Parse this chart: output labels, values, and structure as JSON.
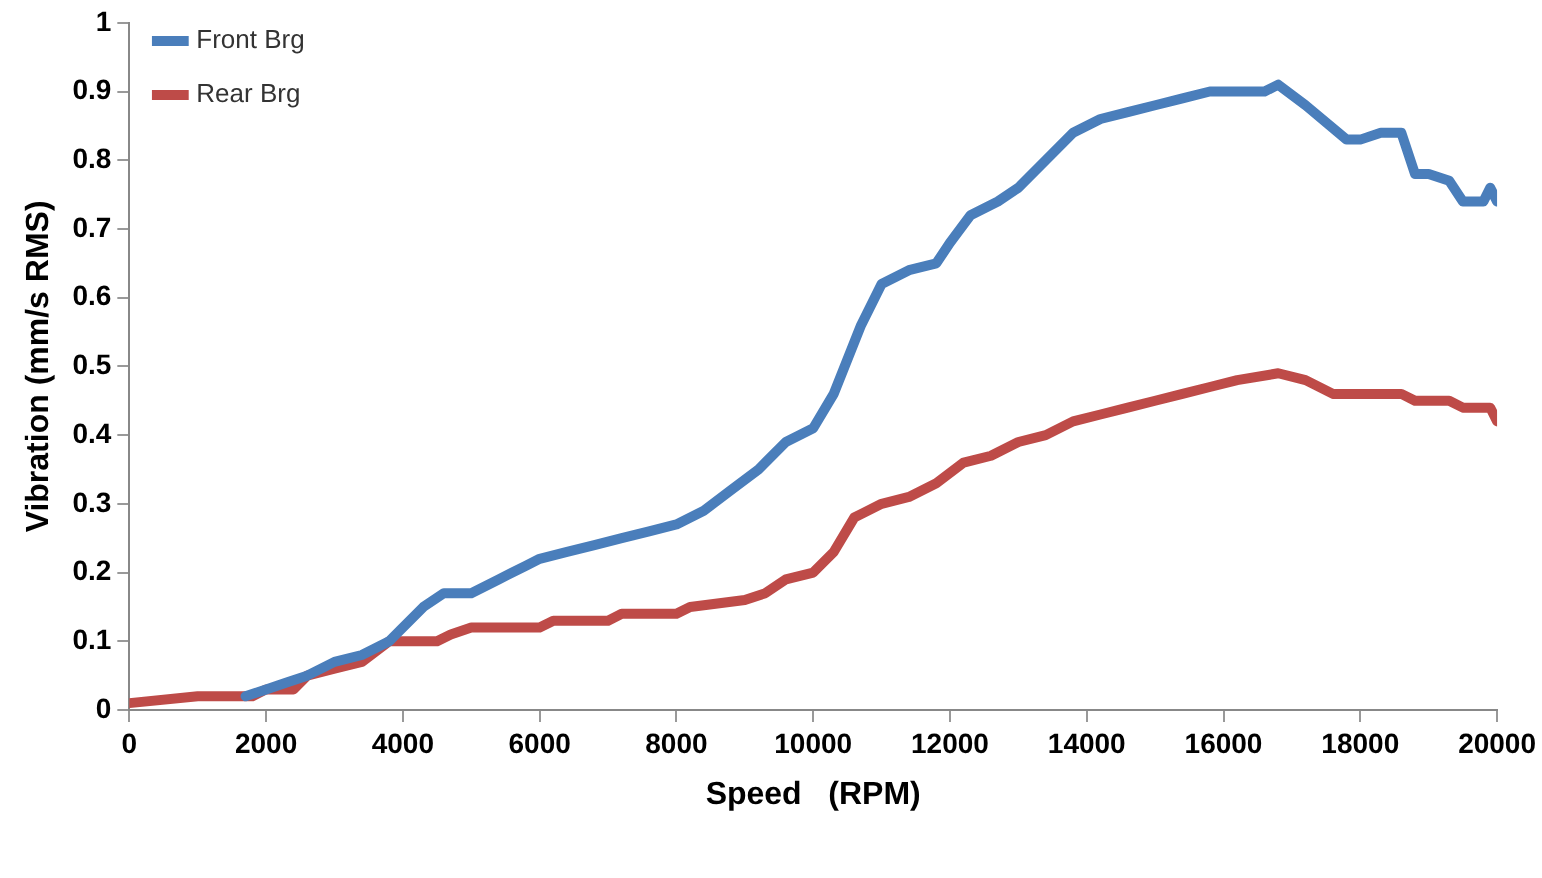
{
  "chart_data": {
    "type": "line",
    "xlabel": "Speed   (RPM)",
    "ylabel": "Vibration (mm/s RMS)",
    "xlim": [
      0,
      20000
    ],
    "xticks": [
      0,
      2000,
      4000,
      6000,
      8000,
      10000,
      12000,
      14000,
      16000,
      18000,
      20000
    ],
    "ylim": [
      0,
      1
    ],
    "yticks": [
      0,
      0.1,
      0.2,
      0.3,
      0.4,
      0.5,
      0.6,
      0.7,
      0.8,
      0.9,
      1
    ],
    "grid": false,
    "legend": "top left",
    "marker": "none",
    "line_style": "solid",
    "series": [
      {
        "name": "Front Brg",
        "color": "#4a7ebb",
        "x": [
          1700,
          2000,
          2300,
          2600,
          3000,
          3400,
          3800,
          4000,
          4300,
          4600,
          5000,
          5400,
          5800,
          6000,
          6400,
          6800,
          7200,
          7600,
          8000,
          8400,
          8800,
          9200,
          9600,
          10000,
          10300,
          10700,
          11000,
          11400,
          11800,
          12000,
          12300,
          12700,
          13000,
          13400,
          13800,
          14200,
          14600,
          15000,
          15400,
          15800,
          16200,
          16600,
          16800,
          17200,
          17800,
          18000,
          18300,
          18600,
          18800,
          19000,
          19300,
          19500,
          19800,
          19900,
          20000
        ],
        "values": [
          0.02,
          0.03,
          0.04,
          0.05,
          0.07,
          0.08,
          0.1,
          0.12,
          0.15,
          0.17,
          0.17,
          0.19,
          0.21,
          0.22,
          0.23,
          0.24,
          0.25,
          0.26,
          0.27,
          0.29,
          0.32,
          0.35,
          0.39,
          0.41,
          0.46,
          0.56,
          0.62,
          0.64,
          0.65,
          0.68,
          0.72,
          0.74,
          0.76,
          0.8,
          0.84,
          0.86,
          0.87,
          0.88,
          0.89,
          0.9,
          0.9,
          0.9,
          0.91,
          0.88,
          0.83,
          0.83,
          0.84,
          0.84,
          0.78,
          0.78,
          0.77,
          0.74,
          0.74,
          0.76,
          0.74
        ]
      },
      {
        "name": "Rear Brg",
        "color": "#be4b48",
        "x": [
          0,
          1000,
          1800,
          2000,
          2400,
          2600,
          3000,
          3400,
          3800,
          4500,
          4700,
          5000,
          6000,
          6200,
          7000,
          7200,
          8000,
          8200,
          9000,
          9300,
          9600,
          10000,
          10300,
          10600,
          11000,
          11400,
          11800,
          12200,
          12600,
          13000,
          13400,
          13800,
          14200,
          14600,
          15000,
          15400,
          15800,
          16200,
          16800,
          17200,
          17600,
          18600,
          18800,
          19300,
          19500,
          19900,
          20000
        ],
        "values": [
          0.01,
          0.02,
          0.02,
          0.03,
          0.03,
          0.05,
          0.06,
          0.07,
          0.1,
          0.1,
          0.11,
          0.12,
          0.12,
          0.13,
          0.13,
          0.14,
          0.14,
          0.15,
          0.16,
          0.17,
          0.19,
          0.2,
          0.23,
          0.28,
          0.3,
          0.31,
          0.33,
          0.36,
          0.37,
          0.39,
          0.4,
          0.42,
          0.43,
          0.44,
          0.45,
          0.46,
          0.47,
          0.48,
          0.49,
          0.48,
          0.46,
          0.46,
          0.45,
          0.45,
          0.44,
          0.44,
          0.42
        ]
      }
    ]
  }
}
